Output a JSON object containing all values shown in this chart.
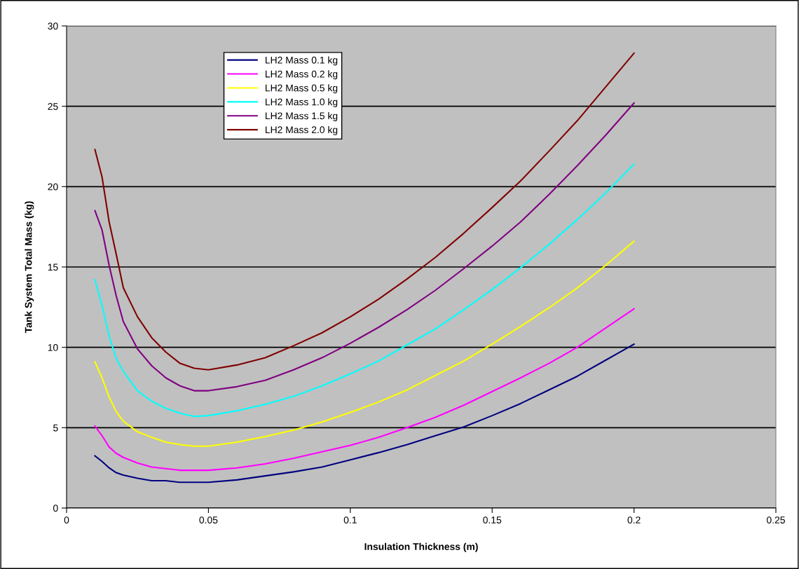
{
  "chart_data": {
    "type": "line",
    "xlabel": "Insulation Thickness (m)",
    "ylabel": "Tank System Total Mass (kg)",
    "x": [
      0.01,
      0.0125,
      0.015,
      0.0175,
      0.02,
      0.025,
      0.03,
      0.035,
      0.04,
      0.045,
      0.05,
      0.06,
      0.07,
      0.08,
      0.09,
      0.1,
      0.11,
      0.12,
      0.13,
      0.14,
      0.15,
      0.16,
      0.17,
      0.18,
      0.19,
      0.2
    ],
    "series": [
      {
        "name": "LH2 Mass 0.1 kg",
        "color": "#000080",
        "values": [
          3.25,
          2.9,
          2.5,
          2.2,
          2.05,
          1.85,
          1.7,
          1.7,
          1.6,
          1.6,
          1.6,
          1.75,
          2.0,
          2.25,
          2.55,
          3.0,
          3.45,
          3.95,
          4.5,
          5.05,
          5.75,
          6.5,
          7.35,
          8.2,
          9.2,
          10.2
        ]
      },
      {
        "name": "LH2 Mass 0.2 kg",
        "color": "#ff00ff",
        "values": [
          5.1,
          4.5,
          3.8,
          3.4,
          3.15,
          2.8,
          2.55,
          2.45,
          2.35,
          2.35,
          2.35,
          2.5,
          2.75,
          3.1,
          3.5,
          3.9,
          4.4,
          5.0,
          5.65,
          6.4,
          7.25,
          8.1,
          9.0,
          10.0,
          11.2,
          12.4
        ]
      },
      {
        "name": "LH2 Mass 0.5 kg",
        "color": "#ffff00",
        "values": [
          9.1,
          8.1,
          6.9,
          6.0,
          5.4,
          4.75,
          4.4,
          4.1,
          3.95,
          3.85,
          3.85,
          4.1,
          4.45,
          4.85,
          5.35,
          5.95,
          6.6,
          7.35,
          8.25,
          9.15,
          10.2,
          11.3,
          12.45,
          13.7,
          15.1,
          16.6
        ]
      },
      {
        "name": "LH2 Mass 1.0 kg",
        "color": "#00ffff",
        "values": [
          14.2,
          12.6,
          10.7,
          9.3,
          8.5,
          7.3,
          6.65,
          6.2,
          5.9,
          5.7,
          5.75,
          6.05,
          6.45,
          6.95,
          7.6,
          8.35,
          9.15,
          10.15,
          11.15,
          12.35,
          13.6,
          14.95,
          16.4,
          17.95,
          19.6,
          21.4
        ]
      },
      {
        "name": "LH2 Mass 1.5 kg",
        "color": "#800080",
        "values": [
          18.5,
          17.3,
          15.1,
          13.2,
          11.6,
          9.9,
          8.85,
          8.1,
          7.6,
          7.3,
          7.3,
          7.55,
          7.95,
          8.6,
          9.35,
          10.25,
          11.25,
          12.35,
          13.55,
          14.9,
          16.3,
          17.8,
          19.5,
          21.3,
          23.2,
          25.2
        ]
      },
      {
        "name": "LH2 Mass 2.0 kg",
        "color": "#800000",
        "values": [
          22.3,
          20.6,
          17.8,
          15.8,
          13.7,
          11.9,
          10.6,
          9.7,
          9.0,
          8.7,
          8.6,
          8.9,
          9.35,
          10.1,
          10.9,
          11.9,
          13.0,
          14.25,
          15.6,
          17.1,
          18.7,
          20.35,
          22.2,
          24.1,
          26.2,
          28.3
        ]
      }
    ],
    "xlim": [
      0,
      0.25
    ],
    "xticks": [
      0,
      0.05,
      0.1,
      0.15,
      0.2,
      0.25
    ],
    "ylim": [
      0,
      30
    ],
    "yticks": [
      0,
      5,
      10,
      15,
      20,
      25,
      30
    ],
    "grid": "y",
    "legend": "top left",
    "marker": "none",
    "line_style": "solid"
  }
}
